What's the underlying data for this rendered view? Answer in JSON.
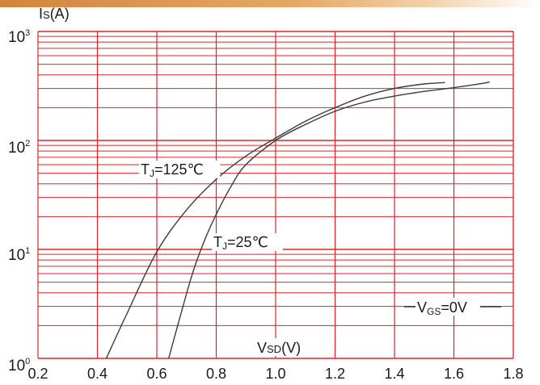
{
  "chart_data": {
    "type": "line",
    "scale": {
      "x": "linear",
      "y": "log"
    },
    "xlim": [
      0.2,
      1.8
    ],
    "ylim": [
      1,
      1000
    ],
    "x_ticks": [
      "0.2",
      "0.4",
      "0.6",
      "0.8",
      "1.0",
      "1.2",
      "1.4",
      "1.6",
      "1.8"
    ],
    "y_ticks": [
      {
        "base": "10",
        "exp": "0"
      },
      {
        "base": "10",
        "exp": "1"
      },
      {
        "base": "10",
        "exp": "2"
      },
      {
        "base": "10",
        "exp": "3"
      }
    ],
    "ylabel": {
      "main": "I",
      "sub": "S",
      "unit": "(A)"
    },
    "xlabel": {
      "main": "V",
      "sub": "SD",
      "unit": "(V)"
    },
    "grid": true,
    "grid_color": "#e0222b",
    "curve_color": "#3a3a3a",
    "series": [
      {
        "name": {
          "main": "T",
          "sub": "J",
          "value": "=125℃"
        },
        "points": [
          [
            0.43,
            1
          ],
          [
            0.5,
            2.6
          ],
          [
            0.6,
            9.5
          ],
          [
            0.7,
            23
          ],
          [
            0.8,
            44
          ],
          [
            0.9,
            72
          ],
          [
            1.0,
            105
          ],
          [
            1.1,
            150
          ],
          [
            1.2,
            200
          ],
          [
            1.3,
            255
          ],
          [
            1.4,
            300
          ],
          [
            1.5,
            330
          ],
          [
            1.57,
            340
          ]
        ]
      },
      {
        "name": {
          "main": "T",
          "sub": "J",
          "value": "=25℃"
        },
        "points": [
          [
            0.64,
            1
          ],
          [
            0.68,
            2.5
          ],
          [
            0.72,
            6
          ],
          [
            0.76,
            12
          ],
          [
            0.8,
            21
          ],
          [
            0.85,
            38
          ],
          [
            0.9,
            60
          ],
          [
            1.0,
            100
          ],
          [
            1.1,
            140
          ],
          [
            1.2,
            185
          ],
          [
            1.3,
            225
          ],
          [
            1.4,
            255
          ],
          [
            1.5,
            282
          ],
          [
            1.6,
            305
          ],
          [
            1.7,
            335
          ],
          [
            1.72,
            345
          ]
        ]
      }
    ],
    "annotations": [
      {
        "main": "V",
        "sub": "GS",
        "value": "=0V"
      }
    ]
  }
}
